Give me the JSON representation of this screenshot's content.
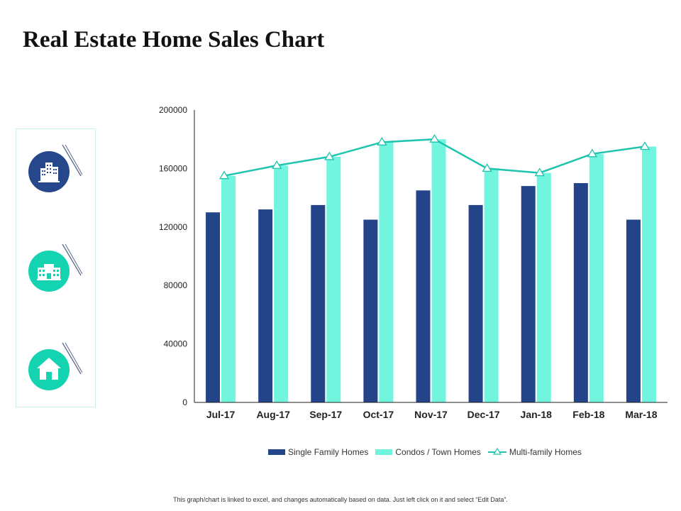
{
  "page": {
    "title": "Real Estate Home Sales Chart",
    "footer": "This graph/chart is linked to excel, and changes automatically based on data. Just left click on it and select “Edit Data”."
  },
  "icons": [
    "office-buildings-icon",
    "apartment-building-icon",
    "house-icon"
  ],
  "colors": {
    "single_family": "#24448a",
    "condos": "#71f5df",
    "multi_family": "#1fc4ae",
    "icon_dark": "#26478c",
    "icon_teal": "#14d3b1"
  },
  "chart_data": {
    "type": "bar",
    "categories": [
      "Jul-17",
      "Aug-17",
      "Sep-17",
      "Oct-17",
      "Nov-17",
      "Dec-17",
      "Jan-18",
      "Feb-18",
      "Mar-18"
    ],
    "series": [
      {
        "name": "Single Family Homes",
        "type": "bar",
        "values": [
          130000,
          132000,
          135000,
          125000,
          145000,
          135000,
          148000,
          150000,
          125000
        ]
      },
      {
        "name": "Condos / Town Homes",
        "type": "bar",
        "values": [
          155000,
          162000,
          168000,
          178000,
          180000,
          160000,
          157000,
          170000,
          175000
        ]
      },
      {
        "name": "Multi-family Homes",
        "type": "line",
        "marker": "triangle",
        "values": [
          155000,
          162000,
          168000,
          178000,
          180000,
          160000,
          157000,
          170000,
          175000
        ]
      }
    ],
    "y_ticks": [
      "0",
      "40000",
      "80000",
      "120000",
      "160000",
      "200000"
    ],
    "ylim": [
      0,
      200000
    ],
    "grid": false,
    "legend_position": "bottom"
  }
}
